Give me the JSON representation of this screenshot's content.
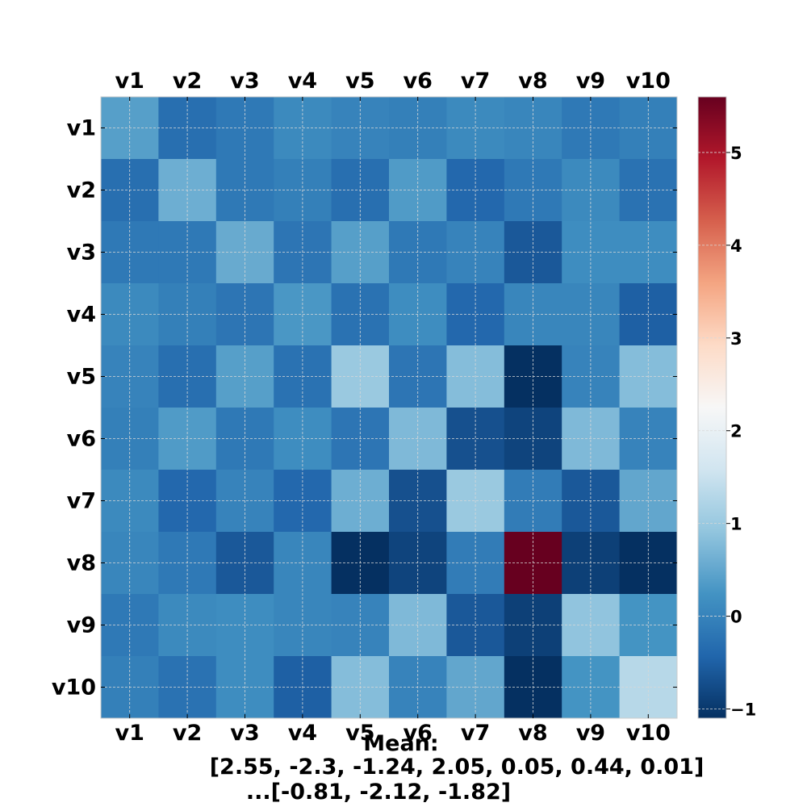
{
  "chart_data": {
    "type": "heatmap",
    "title": "",
    "xlabel": "",
    "ylabel": "",
    "row_labels": [
      "v1",
      "v2",
      "v3",
      "v4",
      "v5",
      "v6",
      "v7",
      "v8",
      "v9",
      "v10"
    ],
    "col_labels": [
      "v1",
      "v2",
      "v3",
      "v4",
      "v5",
      "v6",
      "v7",
      "v8",
      "v9",
      "v10"
    ],
    "values": [
      [
        0.4,
        -0.3,
        -0.15,
        0.1,
        0.0,
        -0.05,
        0.1,
        0.05,
        -0.15,
        -0.05
      ],
      [
        -0.3,
        0.6,
        -0.15,
        -0.05,
        -0.3,
        0.35,
        -0.4,
        -0.15,
        0.1,
        -0.25
      ],
      [
        -0.15,
        -0.15,
        0.55,
        -0.2,
        0.4,
        -0.15,
        0.0,
        -0.6,
        0.15,
        0.15
      ],
      [
        0.1,
        -0.05,
        -0.2,
        0.3,
        -0.25,
        0.15,
        -0.4,
        0.05,
        0.05,
        -0.5
      ],
      [
        0.0,
        -0.3,
        0.4,
        -0.25,
        1.0,
        -0.2,
        0.8,
        -1.1,
        0.0,
        0.8
      ],
      [
        -0.05,
        0.35,
        -0.15,
        0.15,
        -0.2,
        0.75,
        -0.7,
        -0.85,
        0.75,
        0.0
      ],
      [
        0.1,
        -0.4,
        0.0,
        -0.4,
        0.6,
        -0.7,
        1.0,
        -0.1,
        -0.6,
        0.5
      ],
      [
        0.05,
        -0.15,
        -0.6,
        0.05,
        -1.1,
        -0.85,
        -0.1,
        5.6,
        -0.9,
        -1.1
      ],
      [
        -0.15,
        0.1,
        0.15,
        0.05,
        0.0,
        0.75,
        -0.6,
        -0.9,
        0.9,
        0.25
      ],
      [
        -0.05,
        -0.25,
        0.15,
        -0.5,
        0.8,
        0.0,
        0.5,
        -1.1,
        0.25,
        1.3
      ]
    ],
    "colorbar": {
      "min": -1.1,
      "max": 5.6,
      "ticks": [
        -1,
        0,
        1,
        2,
        3,
        4,
        5
      ],
      "tick_labels": [
        "−1",
        "0",
        "1",
        "2",
        "3",
        "4",
        "5"
      ]
    },
    "colormap": "RdBu_r",
    "colors": {
      "low": "#08306b",
      "mid": "#f7f7f7",
      "high": "#67001f"
    },
    "grid": true,
    "caption_lines": [
      "Mean:",
      "[2.55, -2.3, -1.24, 2.05, 0.05, 0.44, 0.01]",
      "...[-0.81, -2.12, -1.82]"
    ]
  }
}
